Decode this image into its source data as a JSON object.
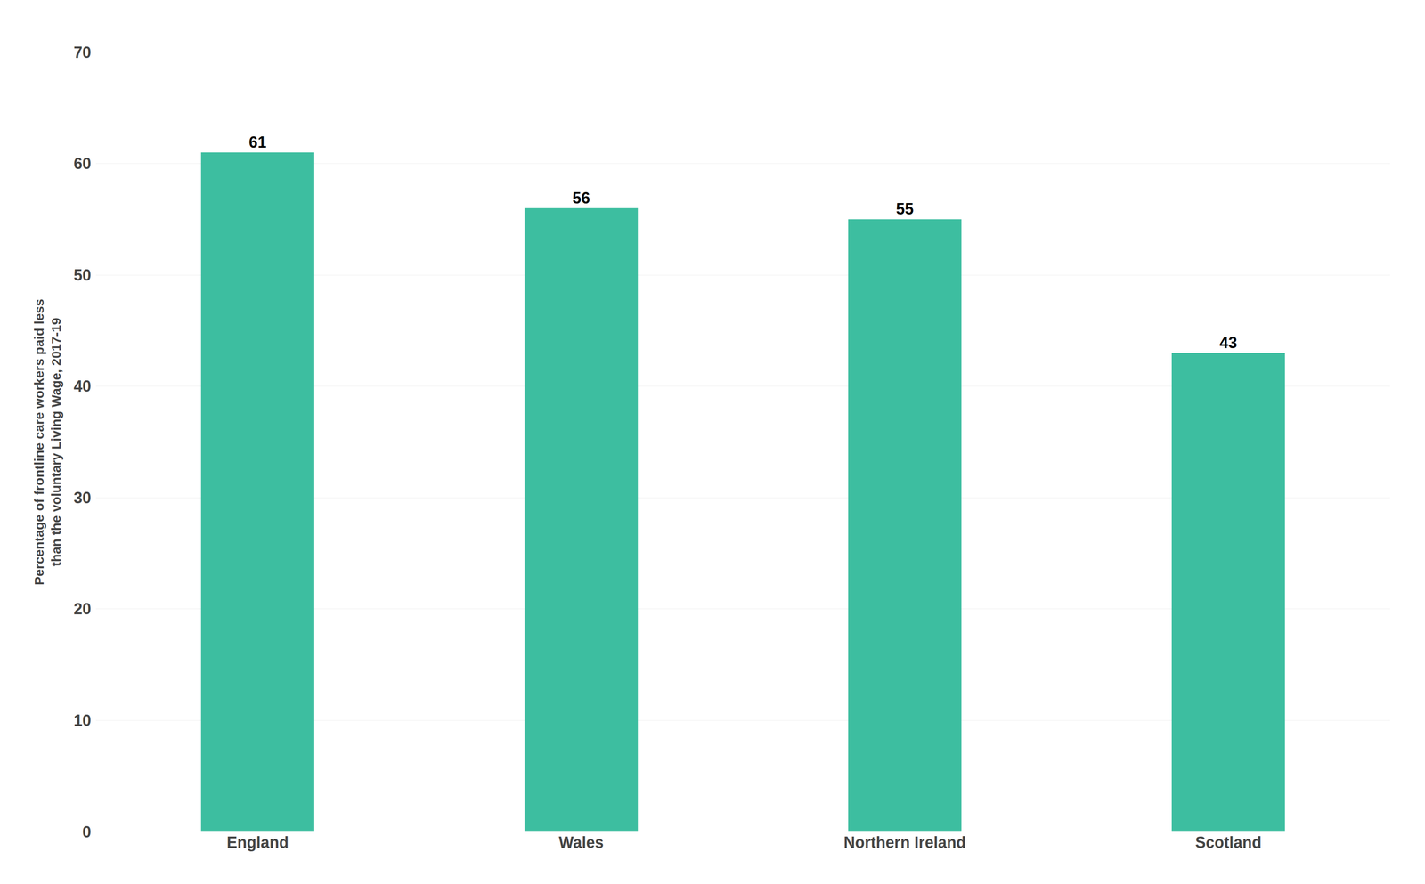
{
  "chart_data": {
    "type": "bar",
    "categories": [
      "England",
      "Wales",
      "Northern Ireland",
      "Scotland"
    ],
    "values": [
      61,
      56,
      55,
      43
    ],
    "color": "#3DBEA0",
    "ylabel": "Percentage of frontline care workers paid less\nthan the voluntary Living Wage, 2017-19",
    "ylim": [
      0,
      70
    ],
    "yticks": [
      0,
      10,
      20,
      30,
      40,
      50,
      60,
      70
    ],
    "grid": true,
    "data_labels": true
  }
}
